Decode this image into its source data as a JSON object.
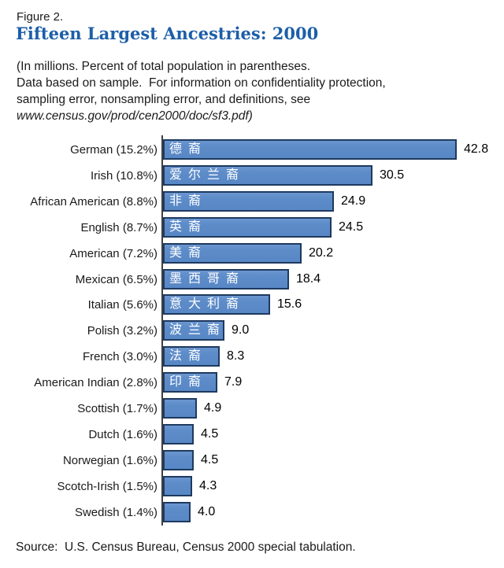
{
  "figure_label": "Figure 2.",
  "title": "Fifteen Largest Ancestries: 2000",
  "subtitle_lines": [
    "(In millions. Percent of total population in parentheses.",
    "Data based on sample.  For information on confidentiality protection,",
    "sampling error, nonsampling error, and definitions, see",
    "www.census.gov/prod/cen2000/doc/sf3.pdf)"
  ],
  "source": "Source:  U.S. Census Bureau, Census 2000 special tabulation.",
  "colors": {
    "title_blue": "#1d5ea8",
    "bar_fill": "#5d8cc9",
    "bar_border": "#1e3a5f",
    "axis": "#3f3f3f",
    "text": "#1a1a1a"
  },
  "chart_data": {
    "type": "bar",
    "orientation": "horizontal",
    "units": "millions",
    "title": "Fifteen Largest Ancestries: 2000",
    "xlim": [
      0,
      45
    ],
    "max_value": 42.8,
    "grid": false,
    "legend": false,
    "categories": [
      "German (15.2%)",
      "Irish (10.8%)",
      "African American (8.8%)",
      "English (8.7%)",
      "American (7.2%)",
      "Mexican (6.5%)",
      "Italian (5.6%)",
      "Polish (3.2%)",
      "French (3.0%)",
      "American Indian (2.8%)",
      "Scottish (1.7%)",
      "Dutch (1.6%)",
      "Norwegian (1.6%)",
      "Scotch-Irish (1.5%)",
      "Swedish (1.4%)"
    ],
    "values": [
      42.8,
      30.5,
      24.9,
      24.5,
      20.2,
      18.4,
      15.6,
      9.0,
      8.3,
      7.9,
      4.9,
      4.5,
      4.5,
      4.3,
      4.0
    ],
    "bar_inner_labels": [
      "德裔",
      "爱尔兰裔",
      "非裔",
      "英裔",
      "美裔",
      "墨西哥裔",
      "意大利裔",
      "波兰裔",
      "法裔",
      "印裔",
      "",
      "",
      "",
      "",
      ""
    ]
  }
}
